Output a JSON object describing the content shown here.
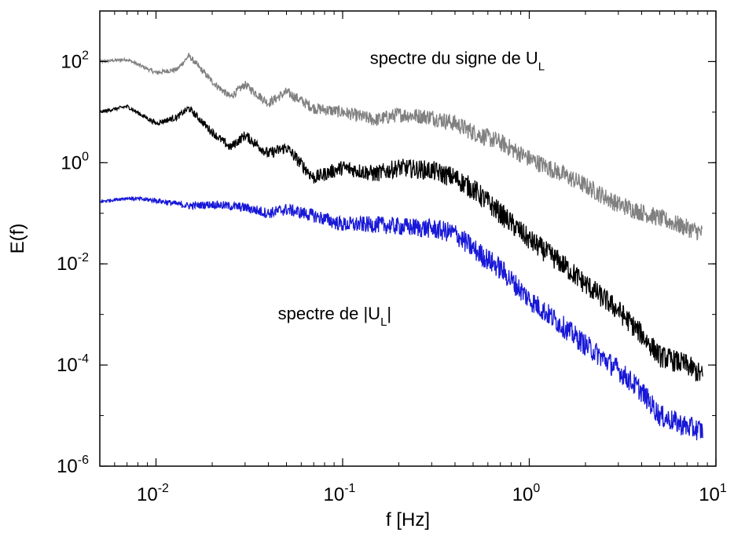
{
  "chart_data": {
    "type": "line",
    "title": "",
    "xlabel": "f [Hz]",
    "ylabel": "E(f)",
    "xscale": "log",
    "yscale": "log",
    "xlim": [
      0.005,
      10
    ],
    "ylim": [
      1e-06,
      1000
    ],
    "grid": false,
    "x_ticks": [
      {
        "value": 0.01,
        "base": "10",
        "exp": "-2"
      },
      {
        "value": 0.1,
        "base": "10",
        "exp": "-1"
      },
      {
        "value": 1,
        "base": "10",
        "exp": "0"
      },
      {
        "value": 10,
        "base": "10",
        "exp": "1"
      }
    ],
    "y_ticks": [
      {
        "value": 1e-06,
        "base": "10",
        "exp": "-6"
      },
      {
        "value": 0.0001,
        "base": "10",
        "exp": "-4"
      },
      {
        "value": 0.01,
        "base": "10",
        "exp": "-2"
      },
      {
        "value": 1,
        "base": "10",
        "exp": "0"
      },
      {
        "value": 100,
        "base": "10",
        "exp": "2"
      }
    ],
    "series": [
      {
        "color": "#808080",
        "x": [
          0.005,
          0.007,
          0.01,
          0.013,
          0.015,
          0.02,
          0.025,
          0.03,
          0.04,
          0.05,
          0.07,
          0.1,
          0.15,
          0.2,
          0.3,
          0.4,
          0.5,
          0.7,
          1,
          1.5,
          2,
          3,
          5,
          8.5
        ],
        "y": [
          100,
          110,
          60,
          70,
          130,
          40,
          20,
          35,
          15,
          25,
          12,
          10,
          7,
          9,
          8,
          6,
          4,
          2.5,
          1.2,
          0.6,
          0.35,
          0.15,
          0.08,
          0.04
        ],
        "noise": 0.18
      },
      {
        "color": "#000000",
        "x": [
          0.005,
          0.007,
          0.01,
          0.013,
          0.015,
          0.02,
          0.025,
          0.03,
          0.04,
          0.05,
          0.07,
          0.1,
          0.15,
          0.2,
          0.3,
          0.4,
          0.5,
          0.7,
          1,
          1.5,
          2,
          3,
          4,
          5,
          7,
          8.5
        ],
        "y": [
          10,
          13,
          6,
          8,
          12,
          4,
          2,
          3.5,
          1.5,
          2,
          0.5,
          0.8,
          0.6,
          0.8,
          0.7,
          0.5,
          0.3,
          0.1,
          0.03,
          0.01,
          0.004,
          0.0012,
          0.0004,
          0.00015,
          0.0001,
          6e-05
        ],
        "noise": 0.22
      },
      {
        "color": "#1818d8",
        "x": [
          0.005,
          0.007,
          0.01,
          0.015,
          0.02,
          0.03,
          0.04,
          0.05,
          0.07,
          0.1,
          0.15,
          0.2,
          0.3,
          0.4,
          0.5,
          0.7,
          1,
          1.5,
          2,
          3,
          4,
          5,
          7,
          8.5
        ],
        "y": [
          0.17,
          0.2,
          0.18,
          0.14,
          0.15,
          0.13,
          0.1,
          0.12,
          0.09,
          0.06,
          0.06,
          0.055,
          0.05,
          0.04,
          0.02,
          0.008,
          0.002,
          0.0006,
          0.00025,
          8e-05,
          3e-05,
          1e-05,
          6e-06,
          5e-06
        ],
        "noise": 0.22
      }
    ],
    "annotations": [
      {
        "text": "spectre du signe de U",
        "sub": "L",
        "x": 0.14,
        "y": 90
      },
      {
        "text": "spectre de |U",
        "sub": "L",
        "after": "|",
        "x": 0.045,
        "y": 0.0008
      }
    ]
  }
}
